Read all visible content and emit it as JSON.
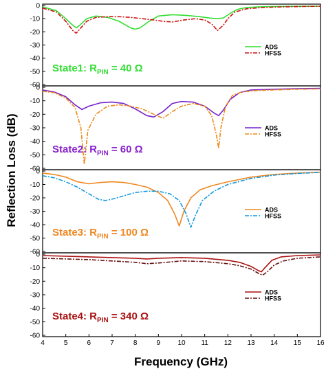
{
  "chart_data": {
    "type": "line",
    "xlabel": "Frequency (GHz)",
    "ylabel": "Reflection Loss (dB)",
    "xlim": [
      4,
      16
    ],
    "x_ticks": [
      "4",
      "5",
      "6",
      "7",
      "8",
      "9",
      "10",
      "11",
      "12",
      "13",
      "14",
      "15",
      "16"
    ],
    "panels": [
      {
        "state_prefix": "State1: R",
        "state_sub": "PIN",
        "state_suffix": " = 40 Ω",
        "color_state": "#33dd33",
        "ylim": [
          -60,
          0
        ],
        "y_ticks": [
          "0",
          "-10",
          "-20",
          "-30",
          "-40",
          "-50",
          "-60"
        ],
        "series": [
          {
            "name": "ADS",
            "color": "#33dd33",
            "dash": "solid",
            "x": [
              4.0,
              4.6,
              5.0,
              5.3,
              5.45,
              5.6,
              5.9,
              6.3,
              6.8,
              7.3,
              7.8,
              8.0,
              8.2,
              8.6,
              9.0,
              9.6,
              10.2,
              10.8,
              11.2,
              11.5,
              11.8,
              12.1,
              12.4,
              12.8,
              13.4,
              14.0,
              15.0,
              16.0
            ],
            "y": [
              -1,
              -4,
              -10,
              -15,
              -17,
              -15,
              -10,
              -8,
              -9,
              -12,
              -17,
              -18,
              -17,
              -12,
              -8,
              -7,
              -7.5,
              -8.5,
              -9.5,
              -10,
              -9.5,
              -6,
              -3,
              -1.5,
              -1,
              -0.8,
              -0.6,
              -0.5
            ]
          },
          {
            "name": "HFSS",
            "color": "#cc1111",
            "dash": "6,2,2,2",
            "x": [
              4.0,
              4.6,
              5.0,
              5.3,
              5.45,
              5.6,
              5.9,
              6.3,
              6.8,
              7.3,
              7.8,
              8.3,
              8.8,
              9.2,
              9.6,
              10.1,
              10.6,
              11.0,
              11.3,
              11.55,
              11.8,
              12.0,
              12.3,
              12.8,
              13.5,
              14.5,
              15.5,
              16.0
            ],
            "y": [
              -2,
              -5,
              -12,
              -19,
              -21,
              -18,
              -12,
              -9,
              -8.5,
              -8.5,
              -9,
              -10,
              -11,
              -12,
              -12.5,
              -11,
              -10,
              -11,
              -14,
              -19,
              -15,
              -10,
              -5,
              -2.5,
              -1.5,
              -1,
              -0.7,
              -0.6
            ]
          }
        ]
      },
      {
        "state_prefix": "State2: R",
        "state_sub": "PIN",
        "state_suffix": " = 60 Ω",
        "color_state": "#8822cc",
        "ylim": [
          -60,
          0
        ],
        "y_ticks": [
          "0",
          "-10",
          "-20",
          "-30",
          "-40",
          "-50",
          "-60"
        ],
        "series": [
          {
            "name": "ADS",
            "color": "#7722cc",
            "dash": "solid",
            "x": [
              4.0,
              4.5,
              5.0,
              5.4,
              5.7,
              6.0,
              6.5,
              7.0,
              7.5,
              8.0,
              8.5,
              8.8,
              9.2,
              9.6,
              10.0,
              10.5,
              11.0,
              11.4,
              11.6,
              11.8,
              12.1,
              12.5,
              13.0,
              14.0,
              15.0,
              16.0
            ],
            "y": [
              -2,
              -3.5,
              -7,
              -13,
              -16.5,
              -14,
              -11.5,
              -11,
              -12,
              -16,
              -21,
              -22,
              -18,
              -12,
              -10.5,
              -11,
              -14,
              -19,
              -21,
              -17,
              -9,
              -4,
              -2,
              -1.5,
              -1,
              -0.8
            ]
          },
          {
            "name": "HFSS",
            "color": "#ee8811",
            "dash": "6,2,2,2",
            "x": [
              4.0,
              4.5,
              5.0,
              5.4,
              5.65,
              5.8,
              5.95,
              6.3,
              6.8,
              7.3,
              7.8,
              8.3,
              8.8,
              9.2,
              9.6,
              10.0,
              10.5,
              11.0,
              11.3,
              11.5,
              11.6,
              11.7,
              11.9,
              12.2,
              12.6,
              13.2,
              14.0,
              15.0,
              16.0
            ],
            "y": [
              -3,
              -4,
              -8,
              -15,
              -30,
              -57,
              -32,
              -20,
              -14,
              -13,
              -14,
              -16,
              -20,
              -23,
              -18,
              -14,
              -12,
              -14,
              -21,
              -35,
              -45,
              -30,
              -14,
              -6,
              -3.5,
              -2.5,
              -2,
              -1.5,
              -1.2
            ]
          }
        ]
      },
      {
        "state_prefix": "State3: R",
        "state_sub": "PIN",
        "state_suffix": " = 100 Ω",
        "color_state": "#ee8822",
        "ylim": [
          -60,
          0
        ],
        "y_ticks": [
          "0",
          "-10",
          "-20",
          "-30",
          "-40",
          "-50",
          "-60"
        ],
        "series": [
          {
            "name": "ADS",
            "color": "#ee8822",
            "dash": "solid",
            "x": [
              4.0,
              4.5,
              5.0,
              5.5,
              6.0,
              6.5,
              7.0,
              7.5,
              8.0,
              8.5,
              9.0,
              9.4,
              9.7,
              9.9,
              10.1,
              10.4,
              10.8,
              11.3,
              12.0,
              13.0,
              14.0,
              15.0,
              16.0
            ],
            "y": [
              -1.5,
              -2.5,
              -4.5,
              -8,
              -9.5,
              -8.5,
              -8,
              -8.5,
              -10,
              -12,
              -16,
              -22,
              -32,
              -41,
              -30,
              -20,
              -14,
              -11,
              -8,
              -4.5,
              -2.5,
              -1.5,
              -0.8
            ]
          },
          {
            "name": "HFSS",
            "color": "#1199dd",
            "dash": "6,2,2,2",
            "x": [
              4.0,
              4.5,
              5.0,
              5.5,
              6.0,
              6.4,
              6.7,
              7.0,
              7.5,
              8.0,
              8.5,
              9.0,
              9.5,
              9.9,
              10.2,
              10.4,
              10.6,
              10.9,
              11.4,
              12.0,
              13.0,
              14.0,
              15.0,
              16.0
            ],
            "y": [
              -3.5,
              -5,
              -8,
              -12,
              -17,
              -21,
              -22,
              -21,
              -18.5,
              -16,
              -15,
              -15,
              -17,
              -22,
              -32,
              -42,
              -33,
              -22,
              -15,
              -10,
              -5.5,
              -3,
              -1.8,
              -1
            ]
          }
        ]
      },
      {
        "state_prefix": "State4: R",
        "state_sub": "PIN",
        "state_suffix": " = 340 Ω",
        "color_state": "#aa1111",
        "ylim": [
          -60,
          0
        ],
        "y_ticks": [
          "0",
          "-10",
          "-20",
          "-30",
          "-40",
          "-50",
          "-60"
        ],
        "series": [
          {
            "name": "ADS",
            "color": "#aa1111",
            "dash": "solid",
            "x": [
              4.0,
              5.0,
              6.0,
              7.0,
              8.0,
              8.5,
              9.0,
              10.0,
              11.0,
              12.0,
              12.5,
              13.0,
              13.3,
              13.45,
              13.6,
              13.9,
              14.3,
              15.0,
              16.0
            ],
            "y": [
              -1,
              -1.5,
              -2,
              -2.5,
              -3,
              -3.5,
              -3,
              -2.5,
              -3,
              -4.5,
              -6,
              -9,
              -12,
              -13,
              -10,
              -4.5,
              -2,
              -1,
              -0.5
            ]
          },
          {
            "name": "HFSS",
            "color": "#661111",
            "dash": "6,2,2,2",
            "x": [
              4.0,
              5.0,
              6.0,
              7.0,
              8.0,
              8.5,
              9.0,
              10.0,
              11.0,
              12.0,
              12.5,
              13.0,
              13.3,
              13.5,
              13.7,
              14.0,
              14.4,
              15.0,
              16.0
            ],
            "y": [
              -3,
              -3.5,
              -4,
              -5,
              -6,
              -7,
              -6.5,
              -5,
              -5.5,
              -7,
              -8.5,
              -11,
              -14,
              -15.5,
              -13,
              -8,
              -5,
              -3,
              -2
            ]
          }
        ]
      }
    ]
  }
}
